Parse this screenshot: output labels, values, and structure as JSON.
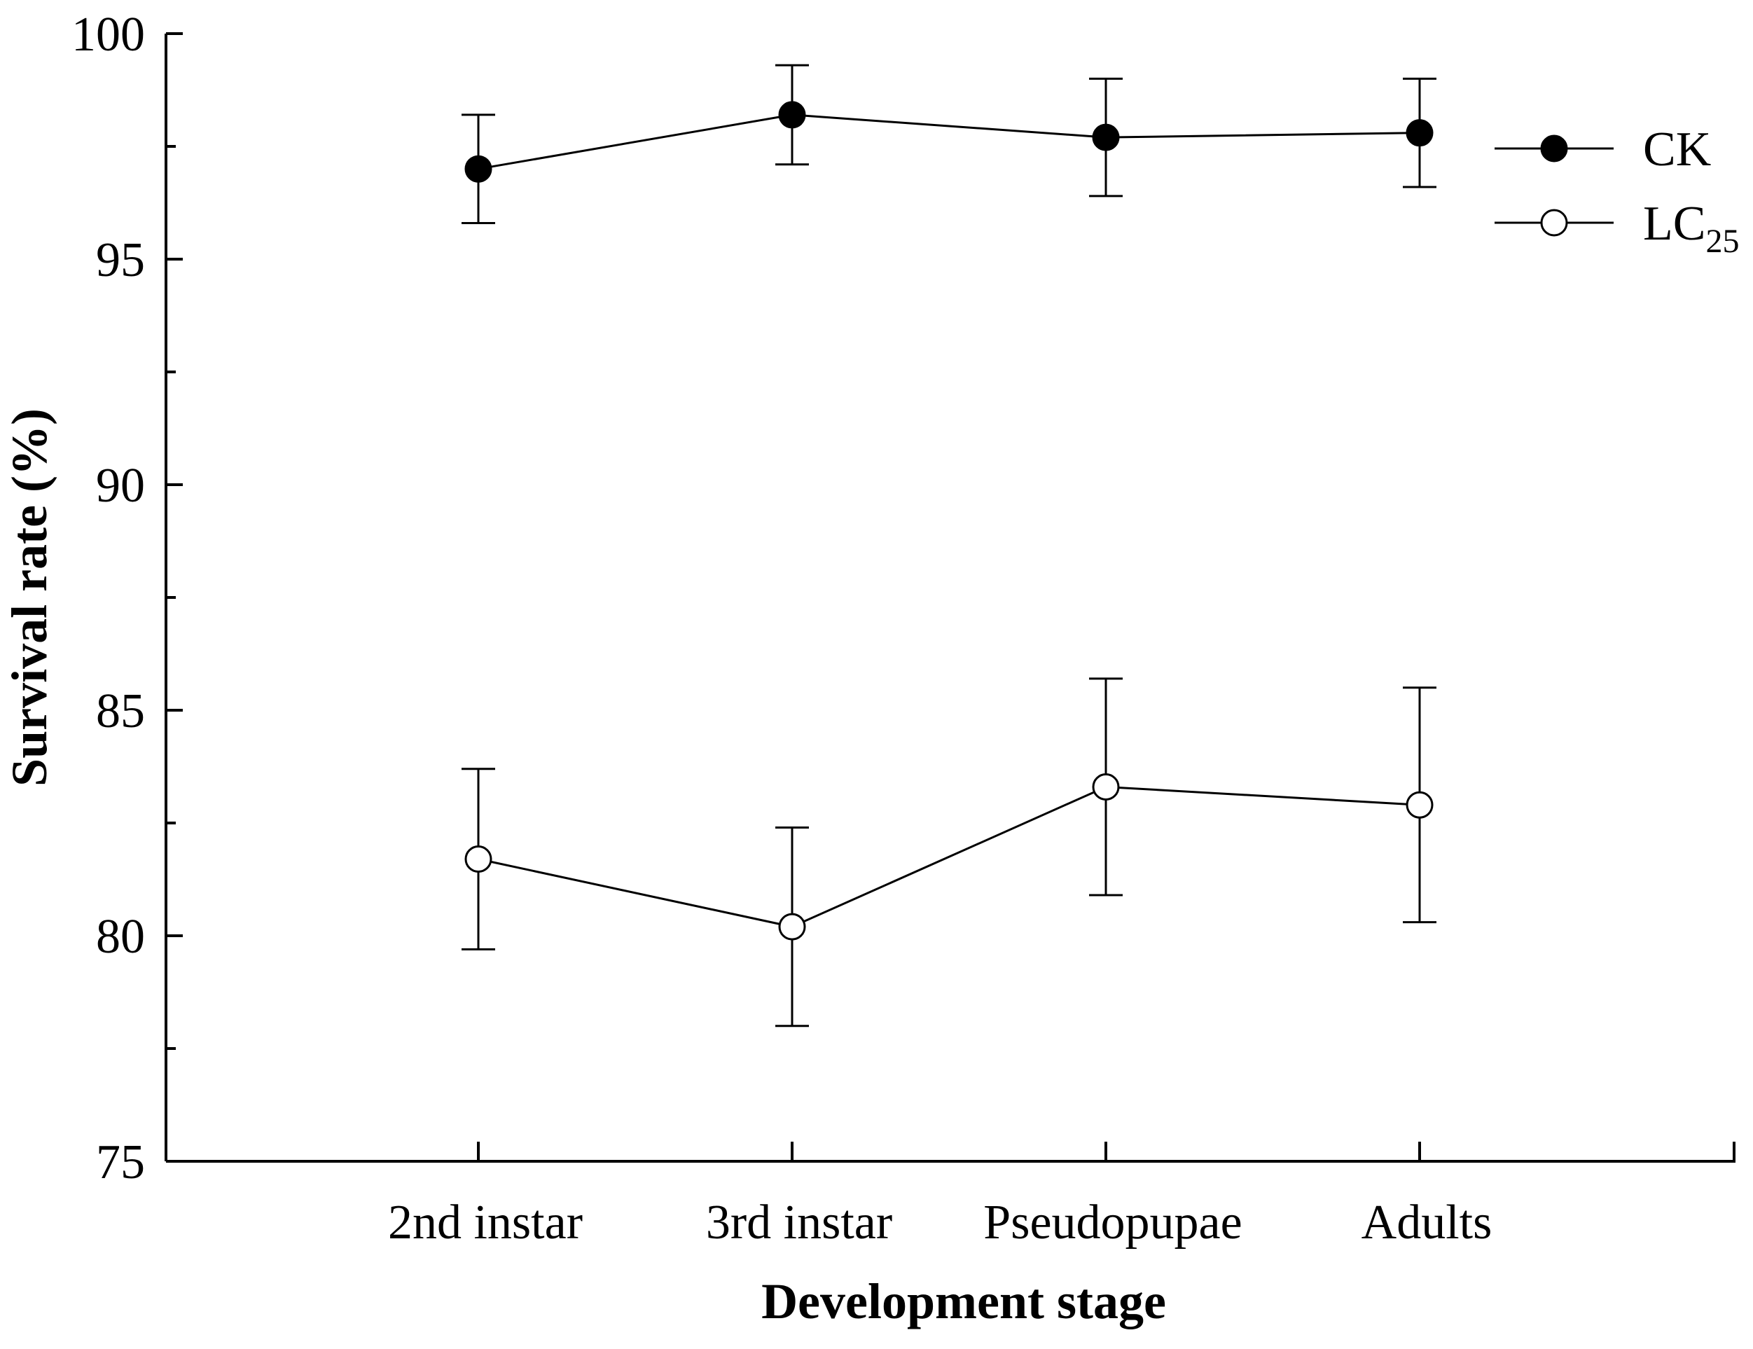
{
  "chart_data": {
    "type": "line",
    "xlabel": "Development stage",
    "ylabel": "Survival rate (%)",
    "categories": [
      "2nd instar",
      "3rd instar",
      "Pseudopupae",
      "Adults"
    ],
    "ylim": [
      75,
      100
    ],
    "yticks": [
      "75",
      "80",
      "85",
      "90",
      "95",
      "100"
    ],
    "grid": false,
    "legend_position": "top-right",
    "series": [
      {
        "name": "CK",
        "name_sub": "",
        "marker": "filled-circle",
        "values": [
          97.0,
          98.2,
          97.7,
          97.8
        ],
        "errors": [
          1.2,
          1.1,
          1.3,
          1.2
        ]
      },
      {
        "name": "LC",
        "name_sub": "25",
        "marker": "open-circle",
        "values": [
          81.7,
          80.2,
          83.3,
          82.9
        ],
        "errors": [
          2.0,
          2.2,
          2.4,
          2.6
        ]
      }
    ],
    "colors": {
      "line": "#000000",
      "marker_fill_open": "#ffffff",
      "marker_fill_filled": "#000000"
    }
  }
}
